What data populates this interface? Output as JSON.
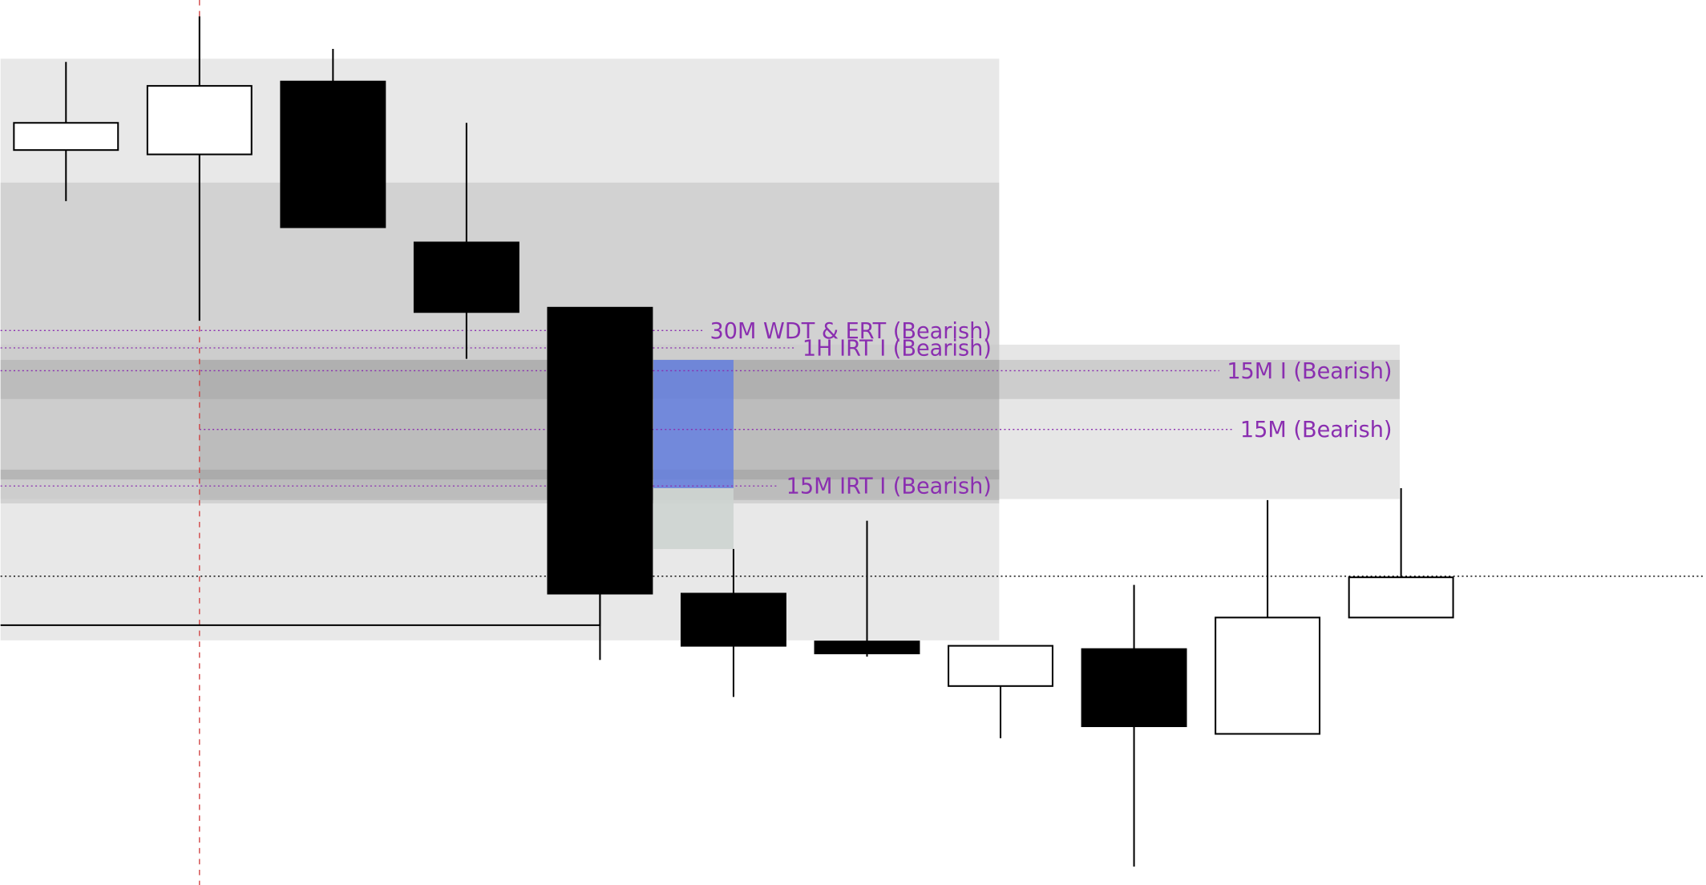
{
  "chart_data": {
    "type": "candlestick",
    "ylim": [
      0,
      814
    ],
    "xlim": [
      -0.49,
      12.28
    ],
    "candles": [
      {
        "open": 676,
        "high": 757,
        "low": 629,
        "close": 701
      },
      {
        "open": 672,
        "high": 799,
        "low": 519,
        "close": 735
      },
      {
        "open": 739,
        "high": 769,
        "low": 605,
        "close": 605
      },
      {
        "open": 591,
        "high": 701,
        "low": 484,
        "close": 527
      },
      {
        "open": 531,
        "high": 531,
        "low": 207,
        "close": 268
      },
      {
        "open": 268,
        "high": 309,
        "low": 173,
        "close": 220
      },
      {
        "open": 224,
        "high": 335,
        "low": 210,
        "close": 213
      },
      {
        "open": 183,
        "high": 220,
        "low": 135,
        "close": 220
      },
      {
        "open": 217,
        "high": 276,
        "low": 17,
        "close": 146
      },
      {
        "open": 139,
        "high": 354,
        "low": 139,
        "close": 246
      },
      {
        "open": 246,
        "high": 365,
        "low": 246,
        "close": 283
      }
    ],
    "zones": [
      {
        "low": 225,
        "high": 760,
        "from": -0.49,
        "to": 6.99,
        "color": "rgba(200,200,200,0.42)"
      },
      {
        "low": 351,
        "high": 646,
        "from": -0.49,
        "to": 6.99,
        "color": "rgba(170,170,170,0.35)"
      },
      {
        "low": 355,
        "high": 497,
        "from": -0.49,
        "to": 9.99,
        "color": "rgba(200,200,200,0.45)"
      },
      {
        "low": 447,
        "high": 483,
        "from": -0.49,
        "to": 9.99,
        "color": "rgba(150,150,150,0.3)"
      },
      {
        "low": 354,
        "high": 483,
        "from": 1,
        "to": 6.99,
        "color": "rgba(150,150,150,0.3)"
      },
      {
        "low": 373,
        "high": 382,
        "from": -0.49,
        "to": 6.99,
        "color": "rgba(140,140,140,0.35)"
      },
      {
        "low": 365,
        "high": 483,
        "from": 4.4,
        "to": 5.0,
        "color": "rgba(90,120,230,0.75)"
      },
      {
        "low": 309,
        "high": 365,
        "from": 4.4,
        "to": 5.0,
        "color": "rgba(205,212,208,0.9)"
      }
    ],
    "levels": [
      {
        "label": "30M WDT & ERT (Bearish)",
        "value": 510,
        "from": -0.49,
        "to": 6.99
      },
      {
        "label": "1H IRT I (Bearish)",
        "value": 494,
        "from": -0.49,
        "to": 6.99
      },
      {
        "label": "15M I (Bearish)",
        "value": 473,
        "from": -0.49,
        "to": 9.99
      },
      {
        "label": "15M (Bearish)",
        "value": 419,
        "from": 1,
        "to": 9.99
      },
      {
        "label": "15M IRT I (Bearish)",
        "value": 367,
        "from": -0.49,
        "to": 6.99
      }
    ],
    "level_color": "#8a2eb0",
    "crosshair_price": 284,
    "marker_x": 1,
    "support": {
      "value": 239,
      "from": -0.49,
      "to": 4
    }
  }
}
